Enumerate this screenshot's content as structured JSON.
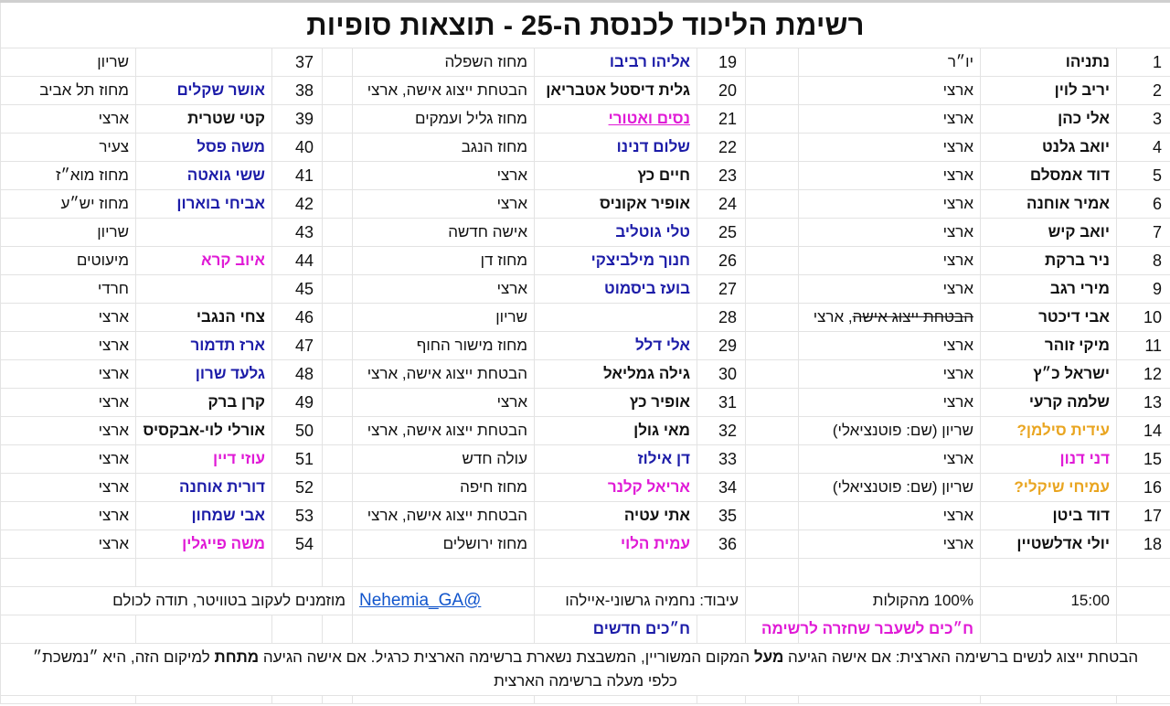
{
  "title": "רשימת הליכוד לכנסת ה-25 - תוצאות סופיות",
  "colors": {
    "blue": "#1c1ca8",
    "magenta": "#e01ad6",
    "orange": "#e9a520",
    "link": "#1155cc",
    "grid": "#e3e3e3"
  },
  "blocks": [
    [
      {
        "num": "1",
        "name": "נתניהו",
        "note": "יו״ר",
        "color": "default"
      },
      {
        "num": "2",
        "name": "יריב לוין",
        "note": "ארצי",
        "color": "default"
      },
      {
        "num": "3",
        "name": "אלי כהן",
        "note": "ארצי",
        "color": "default"
      },
      {
        "num": "4",
        "name": "יואב גלנט",
        "note": "ארצי",
        "color": "default"
      },
      {
        "num": "5",
        "name": "דוד אמסלם",
        "note": "ארצי",
        "color": "default"
      },
      {
        "num": "6",
        "name": "אמיר אוחנה",
        "note": "ארצי",
        "color": "default"
      },
      {
        "num": "7",
        "name": "יואב קיש",
        "note": "ארצי",
        "color": "default"
      },
      {
        "num": "8",
        "name": "ניר ברקת",
        "note": "ארצי",
        "color": "default"
      },
      {
        "num": "9",
        "name": "מירי רגב",
        "note": "ארצי",
        "color": "default"
      },
      {
        "num": "10",
        "name": "אבי דיכטר",
        "note_struck": "הבטחת ייצוג אישה",
        "note": ", ארצי",
        "color": "default"
      },
      {
        "num": "11",
        "name": "מיקי זוהר",
        "note": "ארצי",
        "color": "default"
      },
      {
        "num": "12",
        "name": "ישראל כ״ץ",
        "note": "ארצי",
        "color": "default"
      },
      {
        "num": "13",
        "name": "שלמה קרעי",
        "note": "ארצי",
        "color": "default"
      },
      {
        "num": "14",
        "name": "עידית סילמן?",
        "note": "שריון (שם: פוטנציאלי)",
        "color": "orange"
      },
      {
        "num": "15",
        "name": "דני דנון",
        "note": "ארצי",
        "color": "magenta"
      },
      {
        "num": "16",
        "name": "עמיחי שיקלי?",
        "note": "שריון (שם: פוטנציאלי)",
        "color": "orange"
      },
      {
        "num": "17",
        "name": "דוד ביטן",
        "note": "ארצי",
        "color": "default"
      },
      {
        "num": "18",
        "name": "יולי אדלשטיין",
        "note": "ארצי",
        "color": "default"
      }
    ],
    [
      {
        "num": "19",
        "name": "אליהו רביבו",
        "note": "מחוז השפלה",
        "color": "blue"
      },
      {
        "num": "20",
        "name": "גלית דיסטל אטבריאן",
        "note": "הבטחת ייצוג אישה, ארצי",
        "color": "default"
      },
      {
        "num": "21",
        "name": "נסים ואטורי",
        "note": "מחוז גליל ועמקים",
        "color": "magenta",
        "underline": true
      },
      {
        "num": "22",
        "name": "שלום דנינו",
        "note": "מחוז הנגב",
        "color": "blue"
      },
      {
        "num": "23",
        "name": "חיים כץ",
        "note": "ארצי",
        "color": "default"
      },
      {
        "num": "24",
        "name": "אופיר אקוניס",
        "note": "ארצי",
        "color": "default"
      },
      {
        "num": "25",
        "name": "טלי גוטליב",
        "note": "אישה חדשה",
        "color": "blue"
      },
      {
        "num": "26",
        "name": "חנוך מילביצקי",
        "note": "מחוז דן",
        "color": "blue"
      },
      {
        "num": "27",
        "name": "בועז ביסמוט",
        "note": "ארצי",
        "color": "blue"
      },
      {
        "num": "28",
        "name": "",
        "note": "שריון",
        "color": "default"
      },
      {
        "num": "29",
        "name": "אלי דלל",
        "note": "מחוז מישור החוף",
        "color": "blue"
      },
      {
        "num": "30",
        "name": "גילה גמליאל",
        "note": "הבטחת ייצוג אישה, ארצי",
        "color": "default"
      },
      {
        "num": "31",
        "name": "אופיר כץ",
        "note": "ארצי",
        "color": "default"
      },
      {
        "num": "32",
        "name": "מאי גולן",
        "note": "הבטחת ייצוג אישה, ארצי",
        "color": "default"
      },
      {
        "num": "33",
        "name": "דן אילוז",
        "note": "עולה חדש",
        "color": "blue"
      },
      {
        "num": "34",
        "name": "אריאל קלנר",
        "note": "מחוז חיפה",
        "color": "magenta"
      },
      {
        "num": "35",
        "name": "אתי עטיה",
        "note": "הבטחת ייצוג אישה, ארצי",
        "color": "default"
      },
      {
        "num": "36",
        "name": "עמית הלוי",
        "note": "מחוז ירושלים",
        "color": "magenta"
      }
    ],
    [
      {
        "num": "37",
        "name": "",
        "note": "שריון",
        "color": "default"
      },
      {
        "num": "38",
        "name": "אושר שקלים",
        "note": "מחוז תל אביב",
        "color": "blue"
      },
      {
        "num": "39",
        "name": "קטי שטרית",
        "note": "ארצי",
        "color": "default"
      },
      {
        "num": "40",
        "name": "משה פסל",
        "note": "צעיר",
        "color": "blue"
      },
      {
        "num": "41",
        "name": "ששי גואטה",
        "note": "מחוז מוא״ז",
        "color": "blue"
      },
      {
        "num": "42",
        "name": "אביחי בוארון",
        "note": "מחוז יש״ע",
        "color": "blue"
      },
      {
        "num": "43",
        "name": "",
        "note": "שריון",
        "color": "default"
      },
      {
        "num": "44",
        "name": "איוב קרא",
        "note": "מיעוטים",
        "color": "magenta"
      },
      {
        "num": "45",
        "name": "",
        "note": "חרדי",
        "color": "default"
      },
      {
        "num": "46",
        "name": "צחי הנגבי",
        "note": "ארצי",
        "color": "default"
      },
      {
        "num": "47",
        "name": "ארז תדמור",
        "note": "ארצי",
        "color": "blue"
      },
      {
        "num": "48",
        "name": "גלעד שרון",
        "note": "ארצי",
        "color": "blue"
      },
      {
        "num": "49",
        "name": "קרן ברק",
        "note": "ארצי",
        "color": "default"
      },
      {
        "num": "50",
        "name": "אורלי לוי-אבקסיס",
        "note": "ארצי",
        "color": "default"
      },
      {
        "num": "51",
        "name": "עוזי דיין",
        "note": "ארצי",
        "color": "magenta"
      },
      {
        "num": "52",
        "name": "דורית אוחנה",
        "note": "ארצי",
        "color": "blue"
      },
      {
        "num": "53",
        "name": "אבי שמחון",
        "note": "ארצי",
        "color": "blue"
      },
      {
        "num": "54",
        "name": "משה פייגלין",
        "note": "ארצי",
        "color": "magenta"
      }
    ]
  ],
  "footer": {
    "time": "15:00",
    "votes": "100% מהקולות",
    "credit": "עיבוד: נחמיה גרשוני-איילהו",
    "twitter_handle": "@Nehemia_GA",
    "invite": "מוזמנים לעקוב בטוויטר, תודה לכולם"
  },
  "legend": {
    "returning": "ח״כים לשעבר שחזרה לרשימה",
    "new": "ח״כים חדשים"
  },
  "footnote": {
    "part1": "הבטחת ייצוג לנשים ברשימה הארצית: אם אישה הגיעה ",
    "bold1": "מעל",
    "part2": " המקום המשוריין, המשבצת נשארת ברשימה הארצית כרגיל. אם אישה הגיעה ",
    "bold2": "מתחת",
    "part3": " למיקום הזה, היא ״נמשכת״ כלפי מעלה ברשימה הארצית"
  }
}
